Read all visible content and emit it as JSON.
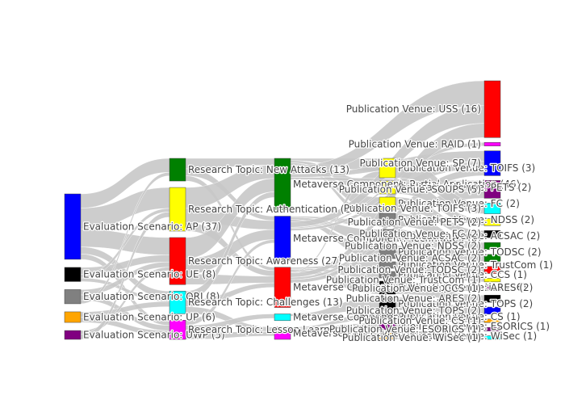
{
  "chart_data": {
    "type": "sankey",
    "title": "",
    "link_color": "#c8c8c8",
    "columns": [
      [
        {
          "id": "ap",
          "label": "Evaluation Scenario: AP (37)",
          "value": 37,
          "color": "#0000ff"
        },
        {
          "id": "ue",
          "label": "Evaluation Scenario: UE (8)",
          "value": 8,
          "color": "#000000"
        },
        {
          "id": "qri",
          "label": "Evaluation Scenario: QRI (8)",
          "value": 8,
          "color": "#808080"
        },
        {
          "id": "up",
          "label": "Evaluation Scenario: UP (6)",
          "value": 6,
          "color": "#ffa500"
        },
        {
          "id": "uwp",
          "label": "Evaluation Scenario: UWP (5)",
          "value": 5,
          "color": "#800080"
        }
      ],
      [
        {
          "id": "na",
          "label": "Research Topic: New Attacks (13)",
          "value": 13,
          "color": "#008000"
        },
        {
          "id": "auth",
          "label": "Research Topic: Authentication (25)",
          "value": 25,
          "color": "#ffff00"
        },
        {
          "id": "aw",
          "label": "Research Topic: Awareness (27)",
          "value": 27,
          "color": "#ff0000"
        },
        {
          "id": "ch",
          "label": "Research Topic: Challenges (13)",
          "value": 13,
          "color": "#00ffff"
        },
        {
          "id": "ll",
          "label": "Research Topic: Lesson Learned (11)",
          "value": 11,
          "color": "#ff00ff"
        }
      ],
      [
        {
          "id": "mpa",
          "label": "Metaverse Component: Partial Application (46)",
          "value": 46,
          "color": "#008000"
        },
        {
          "id": "mt",
          "label": "Metaverse Component: Technique (40)",
          "value": 40,
          "color": "#0000ff"
        },
        {
          "id": "mcs",
          "label": "Metaverse Component: Security Evaluation (36)",
          "value": 36,
          "color": "#ff0000"
        },
        {
          "id": "mcsy",
          "label": "Metaverse Component: System (6)",
          "value": 6,
          "color": "#00ffff"
        },
        {
          "id": "mpm",
          "label": "Metaverse Paper Type: Model (11)",
          "value": 11,
          "color": "#ff00ff"
        }
      ],
      [
        {
          "id": "tifs",
          "label": "Publication Venue: TOIFS (3)",
          "value": 3,
          "color": "#ffff00"
        },
        {
          "id": "pets",
          "label": "Publication Venue: PETS (2)",
          "value": 2,
          "color": "#ffff00"
        },
        {
          "id": "fc",
          "label": "Publication Venue: FC (2)",
          "value": 2,
          "color": "#ffff00"
        },
        {
          "id": "ndss",
          "label": "Publication Venue: NDSS (2)",
          "value": 2,
          "color": "#808080"
        },
        {
          "id": "acsac",
          "label": "Publication Venue: ACSAC (2)",
          "value": 2,
          "color": "#808080"
        },
        {
          "id": "todsc",
          "label": "Publication Venue: TODSC (2)",
          "value": 2,
          "color": "#808080"
        },
        {
          "id": "trustcom",
          "label": "Publication Venue: TrustCom (1)",
          "value": 1,
          "color": "#808080"
        },
        {
          "id": "ccs",
          "label": "Publication Venue: CCS (1)",
          "value": 1,
          "color": "#808080"
        },
        {
          "id": "ares",
          "label": "Publication Venue: ARES (2)",
          "value": 2,
          "color": "#000000"
        },
        {
          "id": "tops",
          "label": "Publication Venue: TOPS (2)",
          "value": 2,
          "color": "#000000"
        },
        {
          "id": "cs",
          "label": "Publication Venue: CS (1)",
          "value": 1,
          "color": "#000000"
        },
        {
          "id": "esorics",
          "label": "Publication Venue: ESORICS (1)",
          "value": 1,
          "color": "#800080"
        },
        {
          "id": "wisec",
          "label": "Publication Venue: WiSec (1)",
          "value": 1,
          "color": "#ffa500"
        }
      ],
      [
        {
          "id": "uss",
          "label": "Publication Venue: USS (16)",
          "value": 16,
          "color": "#ff0000"
        },
        {
          "id": "raid",
          "label": "Publication Venue: RAID (1)",
          "value": 1,
          "color": "#ff00ff"
        },
        {
          "id": "sp",
          "label": "Publication Venue: SP (7)",
          "value": 7,
          "color": "#0000ff"
        },
        {
          "id": "soups",
          "label": "Publication Venue: SOUPS (5)",
          "value": 5,
          "color": "#800080"
        },
        {
          "id": "v_tifs",
          "label": "Publication Venue: TOIFS (3)",
          "value": 3,
          "color": "#00ffff"
        },
        {
          "id": "v_pets",
          "label": "Publication Venue: PETS (2)",
          "value": 2,
          "color": "#ffff00"
        },
        {
          "id": "v_fc",
          "label": "Publication Venue: FC (2)",
          "value": 2,
          "color": "#000000"
        },
        {
          "id": "v_ndss",
          "label": "Publication Venue: NDSS (2)",
          "value": 2,
          "color": "#008000"
        },
        {
          "id": "v_acsac",
          "label": "Publication Venue: ACSAC (2)",
          "value": 2,
          "color": "#008000"
        },
        {
          "id": "v_todsc",
          "label": "Publication Venue: TODSC (2)",
          "value": 2,
          "color": "#ff0000"
        },
        {
          "id": "v_trustcom",
          "label": "Publication Venue: TrustCom (1)",
          "value": 1,
          "color": "#ffff00"
        },
        {
          "id": "v_ccs",
          "label": "Publication Venue: CCS (1)",
          "value": 1,
          "color": "#800080"
        },
        {
          "id": "v_ares",
          "label": "Publication Venue: ARES (2)",
          "value": 2,
          "color": "#000000"
        },
        {
          "id": "v_tops",
          "label": "Publication Venue: TOPS (2)",
          "value": 2,
          "color": "#0000ff"
        },
        {
          "id": "v_cs",
          "label": "Publication Venue: CS (1)",
          "value": 1,
          "color": "#ffa500"
        },
        {
          "id": "v_esorics",
          "label": "Publication Venue: ESORICS (1)",
          "value": 1,
          "color": "#800080"
        },
        {
          "id": "v_wisec",
          "label": "Publication Venue: WiSec (1)",
          "value": 1,
          "color": "#00ffff"
        }
      ]
    ],
    "links": [
      {
        "source": "ap",
        "target": "na",
        "value": 8
      },
      {
        "source": "ap",
        "target": "auth",
        "value": 12
      },
      {
        "source": "ap",
        "target": "aw",
        "value": 10
      },
      {
        "source": "ap",
        "target": "ch",
        "value": 4
      },
      {
        "source": "ap",
        "target": "ll",
        "value": 3
      },
      {
        "source": "ue",
        "target": "aw",
        "value": 4
      },
      {
        "source": "ue",
        "target": "auth",
        "value": 2
      },
      {
        "source": "ue",
        "target": "ch",
        "value": 2
      },
      {
        "source": "qri",
        "target": "aw",
        "value": 3
      },
      {
        "source": "qri",
        "target": "ll",
        "value": 3
      },
      {
        "source": "qri",
        "target": "na",
        "value": 2
      },
      {
        "source": "up",
        "target": "ch",
        "value": 3
      },
      {
        "source": "up",
        "target": "ll",
        "value": 3
      },
      {
        "source": "uwp",
        "target": "aw",
        "value": 2
      },
      {
        "source": "uwp",
        "target": "auth",
        "value": 3
      },
      {
        "source": "na",
        "target": "mpa",
        "value": 6
      },
      {
        "source": "na",
        "target": "mt",
        "value": 4
      },
      {
        "source": "na",
        "target": "mcs",
        "value": 3
      },
      {
        "source": "auth",
        "target": "mpa",
        "value": 12
      },
      {
        "source": "auth",
        "target": "mt",
        "value": 8
      },
      {
        "source": "auth",
        "target": "mcs",
        "value": 5
      },
      {
        "source": "aw",
        "target": "mpa",
        "value": 12
      },
      {
        "source": "aw",
        "target": "mt",
        "value": 9
      },
      {
        "source": "aw",
        "target": "mcs",
        "value": 6
      },
      {
        "source": "ch",
        "target": "mpa",
        "value": 5
      },
      {
        "source": "ch",
        "target": "mcs",
        "value": 4
      },
      {
        "source": "ch",
        "target": "mpm",
        "value": 4
      },
      {
        "source": "ll",
        "target": "mt",
        "value": 3
      },
      {
        "source": "ll",
        "target": "mcsy",
        "value": 4
      },
      {
        "source": "ll",
        "target": "mpm",
        "value": 4
      },
      {
        "source": "mpa",
        "target": "tifs",
        "value": 2
      },
      {
        "source": "mpa",
        "target": "pets",
        "value": 2
      },
      {
        "source": "mpa",
        "target": "fc",
        "value": 2
      },
      {
        "source": "mpa",
        "target": "ndss",
        "value": 1
      },
      {
        "source": "mt",
        "target": "ndss",
        "value": 1
      },
      {
        "source": "mt",
        "target": "acsac",
        "value": 2
      },
      {
        "source": "mt",
        "target": "todsc",
        "value": 2
      },
      {
        "source": "mcs",
        "target": "trustcom",
        "value": 1
      },
      {
        "source": "mcs",
        "target": "ccs",
        "value": 1
      },
      {
        "source": "mcs",
        "target": "ares",
        "value": 2
      },
      {
        "source": "mcs",
        "target": "tifs",
        "value": 1
      },
      {
        "source": "mcsy",
        "target": "tops",
        "value": 2
      },
      {
        "source": "mpm",
        "target": "cs",
        "value": 1
      },
      {
        "source": "mpm",
        "target": "esorics",
        "value": 1
      },
      {
        "source": "mpm",
        "target": "wisec",
        "value": 1
      },
      {
        "source": "mpa",
        "target": "uss",
        "value": 7
      },
      {
        "source": "mpa",
        "target": "sp",
        "value": 3
      },
      {
        "source": "mpa",
        "target": "soups",
        "value": 2
      },
      {
        "source": "mt",
        "target": "uss",
        "value": 5
      },
      {
        "source": "mt",
        "target": "raid",
        "value": 1
      },
      {
        "source": "mt",
        "target": "sp",
        "value": 2
      },
      {
        "source": "mcs",
        "target": "uss",
        "value": 4
      },
      {
        "source": "mcs",
        "target": "sp",
        "value": 2
      },
      {
        "source": "mcs",
        "target": "soups",
        "value": 3
      },
      {
        "source": "tifs",
        "target": "v_tifs",
        "value": 3
      },
      {
        "source": "pets",
        "target": "v_pets",
        "value": 2
      },
      {
        "source": "fc",
        "target": "v_fc",
        "value": 2
      },
      {
        "source": "ndss",
        "target": "v_ndss",
        "value": 2
      },
      {
        "source": "acsac",
        "target": "v_acsac",
        "value": 2
      },
      {
        "source": "todsc",
        "target": "v_todsc",
        "value": 2
      },
      {
        "source": "trustcom",
        "target": "v_trustcom",
        "value": 1
      },
      {
        "source": "ccs",
        "target": "v_ccs",
        "value": 1
      },
      {
        "source": "ares",
        "target": "v_ares",
        "value": 2
      },
      {
        "source": "tops",
        "target": "v_tops",
        "value": 2
      },
      {
        "source": "cs",
        "target": "v_cs",
        "value": 1
      },
      {
        "source": "esorics",
        "target": "v_esorics",
        "value": 1
      },
      {
        "source": "wisec",
        "target": "v_wisec",
        "value": 1
      }
    ]
  }
}
